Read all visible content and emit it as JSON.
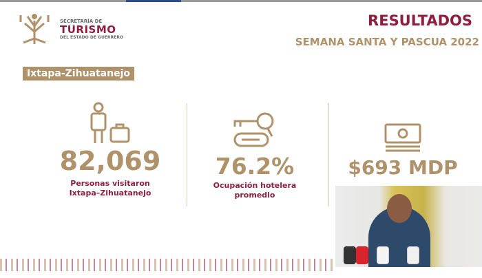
{
  "header": {
    "org_line1": "SECRETARÍA DE",
    "org_line2": "TURISMO",
    "org_line3": "DEL ESTADO DE GUERRERO",
    "title": "RESULTADOS",
    "subtitle": "SEMANA SANTA Y PASCUA 2022"
  },
  "location": "Ixtapa-Zihuatanejo",
  "stats": [
    {
      "icon": "traveler-luggage-icon",
      "value": "82,069",
      "label_line1": "Personas visitaron",
      "label_line2": "Ixtapa–Zihuatanejo"
    },
    {
      "icon": "hotel-key-icon",
      "value": "76.2%",
      "label_line1": "Ocupación hotelera",
      "label_line2": "promedio"
    },
    {
      "icon": "money-bill-icon",
      "value": "$693 MDP"
    }
  ],
  "colors": {
    "gold": "#b0926a",
    "maroon": "#8f1d3f"
  }
}
